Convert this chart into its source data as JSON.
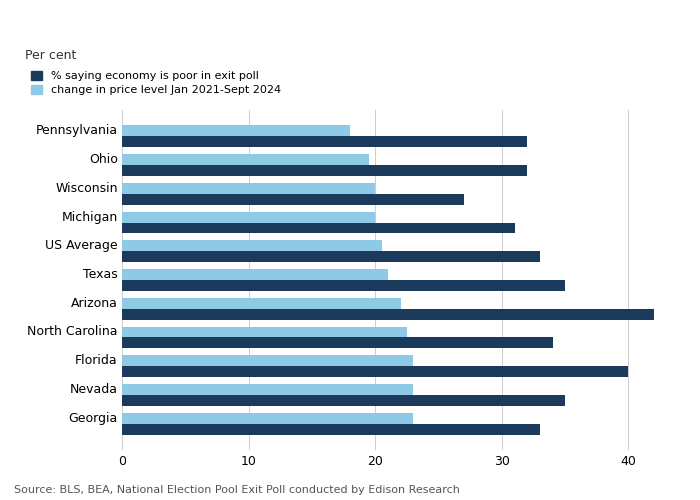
{
  "ylabel": "Per cent",
  "source": "Source: BLS, BEA, National Election Pool Exit Poll conducted by Edison Research",
  "categories": [
    "Pennsylvania",
    "Ohio",
    "Wisconsin",
    "Michigan",
    "US Average",
    "Texas",
    "Arizona",
    "North Carolina",
    "Florida",
    "Nevada",
    "Georgia"
  ],
  "economy_poor": [
    32,
    32,
    27,
    31,
    33,
    35,
    42,
    34,
    40,
    35,
    33
  ],
  "price_change": [
    18,
    19.5,
    20,
    20,
    20.5,
    21,
    22,
    22.5,
    23,
    23,
    23
  ],
  "color_poor": "#1b3a5c",
  "color_price": "#8ecae6",
  "xlim": [
    0,
    44
  ],
  "xticks": [
    0,
    10,
    20,
    30,
    40
  ],
  "background_color": "#ffffff",
  "bar_height": 0.38,
  "legend_labels": [
    "% saying economy is poor in exit poll",
    "change in price level Jan 2021-Sept 2024"
  ],
  "axis_fontsize": 9,
  "source_fontsize": 8,
  "label_fontsize": 9,
  "grid_color": "#cccccc"
}
